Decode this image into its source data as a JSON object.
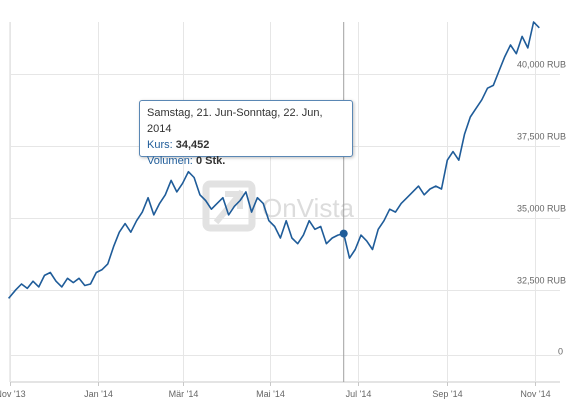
{
  "watermark": {
    "text": "OnVista"
  },
  "tooltip": {
    "date": "Samstag, 21. Jun-Sonntag, 22. Jun, 2014",
    "kurs_label": "Kurs:",
    "kurs_value": "34,452",
    "volumen_label": "Volumen:",
    "volumen_value": "0 Stk."
  },
  "colors": {
    "line": "#1f5c99",
    "grid": "#e6e6e6",
    "crosshair": "#a0a0a0",
    "tooltip_border": "#5a87b4"
  },
  "chart_data": {
    "type": "line",
    "title": "",
    "xlabel": "",
    "ylabel": "",
    "grid": true,
    "y_unit": "RUB",
    "ylim": [
      31000,
      41800
    ],
    "y_ticks": [
      {
        "value": 40000,
        "label": "40,000 RUB"
      },
      {
        "value": 37500,
        "label": "37,500 RUB"
      },
      {
        "value": 35000,
        "label": "35,000 RUB"
      },
      {
        "value": 32500,
        "label": "32,500 RUB"
      }
    ],
    "y_zero_label": "0",
    "x_ticks": [
      {
        "date": "2013-11-01",
        "label": "Nov '13"
      },
      {
        "date": "2014-01-01",
        "label": "Jan '14"
      },
      {
        "date": "2014-03-01",
        "label": "Mär '14"
      },
      {
        "date": "2014-05-01",
        "label": "Mai '14"
      },
      {
        "date": "2014-07-01",
        "label": "Jul '14"
      },
      {
        "date": "2014-09-01",
        "label": "Sep '14"
      },
      {
        "date": "2014-11-01",
        "label": "Nov '14"
      }
    ],
    "series": [
      {
        "x": [
          "2013-10-31",
          "2013-11-05",
          "2013-11-09",
          "2013-11-13",
          "2013-11-17",
          "2013-11-21",
          "2013-11-25",
          "2013-11-29",
          "2013-12-03",
          "2013-12-07",
          "2013-12-11",
          "2013-12-15",
          "2013-12-19",
          "2013-12-23",
          "2013-12-27",
          "2013-12-31",
          "2014-01-04",
          "2014-01-08",
          "2014-01-12",
          "2014-01-16",
          "2014-01-20",
          "2014-01-24",
          "2014-01-28",
          "2014-02-01",
          "2014-02-05",
          "2014-02-09",
          "2014-02-13",
          "2014-02-17",
          "2014-02-21",
          "2014-02-25",
          "2014-03-01",
          "2014-03-05",
          "2014-03-09",
          "2014-03-13",
          "2014-03-17",
          "2014-03-21",
          "2014-03-25",
          "2014-03-29",
          "2014-04-02",
          "2014-04-06",
          "2014-04-10",
          "2014-04-14",
          "2014-04-18",
          "2014-04-22",
          "2014-04-26",
          "2014-04-30",
          "2014-05-04",
          "2014-05-08",
          "2014-05-12",
          "2014-05-16",
          "2014-05-20",
          "2014-05-24",
          "2014-05-28",
          "2014-06-01",
          "2014-06-05",
          "2014-06-09",
          "2014-06-13",
          "2014-06-17",
          "2014-06-21",
          "2014-06-25",
          "2014-06-29",
          "2014-07-03",
          "2014-07-07",
          "2014-07-11",
          "2014-07-15",
          "2014-07-19",
          "2014-07-23",
          "2014-07-27",
          "2014-07-31",
          "2014-08-04",
          "2014-08-08",
          "2014-08-12",
          "2014-08-16",
          "2014-08-20",
          "2014-08-24",
          "2014-08-28",
          "2014-09-01",
          "2014-09-05",
          "2014-09-09",
          "2014-09-13",
          "2014-09-17",
          "2014-09-21",
          "2014-09-25",
          "2014-09-29",
          "2014-10-03",
          "2014-10-07",
          "2014-10-11",
          "2014-10-15",
          "2014-10-19",
          "2014-10-23",
          "2014-10-27",
          "2014-10-31",
          "2014-11-04"
        ],
        "values": [
          32200,
          32500,
          32700,
          32550,
          32800,
          32600,
          33000,
          33100,
          32800,
          32600,
          32900,
          32750,
          32900,
          32650,
          32700,
          33100,
          33200,
          33400,
          34000,
          34500,
          34800,
          34500,
          34900,
          35200,
          35700,
          35100,
          35500,
          35800,
          36300,
          35900,
          36200,
          36600,
          36400,
          35800,
          35600,
          35300,
          35500,
          35700,
          35100,
          35400,
          35600,
          35900,
          35200,
          35700,
          35500,
          34900,
          34700,
          34300,
          34900,
          34300,
          34100,
          34400,
          34900,
          34600,
          34700,
          34100,
          34300,
          34400,
          34452,
          33600,
          33900,
          34400,
          34200,
          33900,
          34600,
          34900,
          35300,
          35200,
          35500,
          35700,
          35900,
          36100,
          35800,
          36000,
          36100,
          36000,
          37000,
          37300,
          37000,
          37900,
          38500,
          38800,
          39100,
          39500,
          39600,
          40100,
          40600,
          41000,
          40700,
          41300,
          40900,
          41800,
          41600
        ]
      }
    ],
    "highlight": {
      "x": "2014-06-21",
      "value": 34452
    }
  }
}
